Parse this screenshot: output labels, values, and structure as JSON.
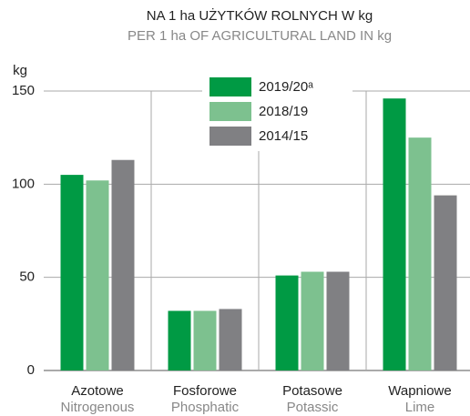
{
  "chart_data": {
    "type": "bar",
    "title": "NA 1 ha UŻYTKÓW ROLNYCH W kg",
    "subtitle": "PER 1 ha OF AGRICULTURAL LAND IN kg",
    "y_label": "kg",
    "categories": [
      "Azotowe",
      "Fosforowe",
      "Potasowe",
      "Wapniowe"
    ],
    "categories_en": [
      "Nitrogenous",
      "Phosphatic",
      "Potassic",
      "Lime"
    ],
    "series": [
      {
        "name": "2019/20ᵃ",
        "color": "#009a44",
        "values": [
          105,
          32,
          51,
          146
        ]
      },
      {
        "name": "2018/19",
        "color": "#7dc18f",
        "values": [
          102,
          32,
          53,
          125
        ]
      },
      {
        "name": "2014/15",
        "color": "#808083",
        "values": [
          113,
          33,
          53,
          94
        ]
      }
    ],
    "ylim": [
      0,
      150
    ],
    "yticks": [
      0,
      50,
      100,
      150
    ],
    "grid": true
  }
}
